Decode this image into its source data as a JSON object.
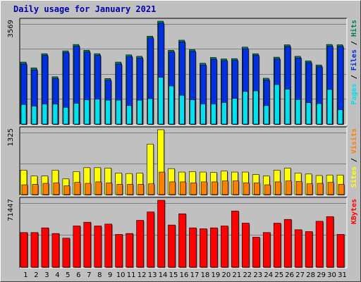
{
  "chart_data": {
    "type": "bar",
    "title": "Daily usage for January 2021",
    "categories": [
      "1",
      "2",
      "3",
      "4",
      "5",
      "6",
      "7",
      "8",
      "9",
      "10",
      "11",
      "12",
      "13",
      "14",
      "15",
      "16",
      "17",
      "18",
      "19",
      "20",
      "21",
      "22",
      "23",
      "24",
      "25",
      "26",
      "27",
      "28",
      "29",
      "30",
      "31"
    ],
    "weekend_days": [
      "2",
      "3",
      "9",
      "10",
      "16",
      "17",
      "23",
      "24",
      "30",
      "31"
    ],
    "colors": {
      "background": "#c0c0c0",
      "title": "#0000b0",
      "weekend_label": "#008040",
      "weekday_label": "#000000",
      "hits": "#00805c",
      "files": "#0030e0",
      "pages": "#00e0f0",
      "visits": "#ff8000",
      "sites": "#ffff00",
      "kbytes": "#ff0000"
    },
    "panels": [
      {
        "id": "hits-files-pages",
        "ymax_label": "3569",
        "ylim": [
          0,
          3569
        ],
        "legend": [
          "Pages",
          "Files",
          "Hits"
        ],
        "series": [
          {
            "name": "Hits",
            "values": [
              2150,
              1950,
              2440,
              1640,
              2540,
              2760,
              2560,
              2440,
              1580,
              2150,
              2400,
              2350,
              3050,
              3569,
              2560,
              2910,
              2580,
              2110,
              2310,
              2260,
              2270,
              2670,
              2440,
              1590,
              2320,
              2750,
              2350,
              2190,
              2050,
              2760,
              2750
            ]
          },
          {
            "name": "Files",
            "values": [
              2080,
              1880,
              2380,
              1580,
              2480,
              2700,
              2500,
              2380,
              1520,
              2080,
              2340,
              2290,
              2990,
              3500,
              2500,
              2850,
              2520,
              2050,
              2250,
              2200,
              2210,
              2610,
              2380,
              1530,
              2260,
              2690,
              2290,
              2130,
              1990,
              2700,
              2690
            ]
          },
          {
            "name": "Pages",
            "values": [
              680,
              620,
              690,
              690,
              580,
              720,
              840,
              860,
              830,
              830,
              640,
              830,
              880,
              1620,
              1320,
              1000,
              840,
              700,
              700,
              750,
              890,
              1130,
              1150,
              640,
              1370,
              1210,
              850,
              740,
              710,
              1200,
              500
            ]
          }
        ]
      },
      {
        "id": "sites-visits",
        "ymax_label": "1325",
        "ylim": [
          0,
          1325
        ],
        "legend": [
          "Sites",
          "Visits"
        ],
        "series": [
          {
            "name": "Sites",
            "values": [
              500,
              380,
              380,
              500,
              320,
              470,
              550,
              550,
              540,
              440,
              430,
              440,
              1030,
              1325,
              530,
              460,
              470,
              460,
              450,
              480,
              460,
              460,
              410,
              380,
              500,
              540,
              440,
              420,
              390,
              400,
              400
            ]
          },
          {
            "name": "Visits",
            "values": [
              200,
              210,
              230,
              240,
              180,
              250,
              230,
              260,
              240,
              210,
              210,
              210,
              220,
              460,
              260,
              260,
              240,
              260,
              260,
              280,
              280,
              240,
              240,
              200,
              260,
              280,
              270,
              220,
              230,
              250,
              210
            ]
          }
        ]
      },
      {
        "id": "kbytes",
        "ymax_label": "71447",
        "ylim": [
          0,
          71447
        ],
        "legend": [
          "KBytes"
        ],
        "series": [
          {
            "name": "KBytes",
            "values": [
              37000,
              37000,
              42000,
              36000,
              31000,
              44000,
              48000,
              44000,
              46000,
              35000,
              36000,
              50000,
              59000,
              71447,
              45000,
              57000,
              42000,
              41000,
              42000,
              44000,
              60000,
              47000,
              32000,
              37000,
              47000,
              51000,
              40000,
              38000,
              49000,
              54000,
              35000
            ]
          }
        ]
      }
    ]
  }
}
